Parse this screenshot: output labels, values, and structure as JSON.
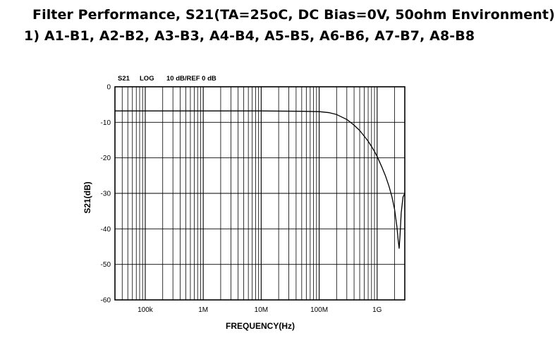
{
  "page": {
    "title_line1": "Filter Performance, S21(TA=25oC, DC Bias=0V, 50ohm Environment)",
    "title_line2": "1) A1-B1, A2-B2, A3-B3, A4-B4, A5-B5, A6-B6, A7-B7, A8-B8"
  },
  "chart_data": {
    "type": "line",
    "header": {
      "param": "S21",
      "scale": "LOG",
      "ref": "10 dB/REF 0 dB"
    },
    "xlabel": "FREQUENCY(Hz)",
    "ylabel": "S21(dB)",
    "x_scale": "log",
    "xlim": [
      30000,
      3000000000
    ],
    "ylim": [
      -60,
      0
    ],
    "x_ticks": [
      {
        "value": 100000,
        "label": "100k"
      },
      {
        "value": 1000000,
        "label": "1M"
      },
      {
        "value": 10000000,
        "label": "10M"
      },
      {
        "value": 100000000,
        "label": "100M"
      },
      {
        "value": 1000000000,
        "label": "1G"
      }
    ],
    "y_ticks": [
      {
        "value": 0,
        "label": "0"
      },
      {
        "value": -10,
        "label": "-10"
      },
      {
        "value": -20,
        "label": "-20"
      },
      {
        "value": -30,
        "label": "-30"
      },
      {
        "value": -40,
        "label": "-40"
      },
      {
        "value": -50,
        "label": "-50"
      },
      {
        "value": -60,
        "label": "-60"
      }
    ],
    "grid": true,
    "line_color": "#000000",
    "series": [
      {
        "x": [
          30000,
          100000,
          1000000,
          10000000,
          50000000,
          100000000,
          150000000,
          200000000,
          300000000,
          400000000,
          500000000,
          600000000,
          700000000,
          800000000,
          900000000,
          1000000000,
          1200000000,
          1400000000,
          1600000000,
          1800000000,
          2000000000,
          2200000000,
          2300000000,
          2400000000,
          2500000000,
          2600000000,
          2800000000,
          3000000000
        ],
        "y": [
          -6.8,
          -6.8,
          -6.8,
          -6.8,
          -6.9,
          -7.0,
          -7.3,
          -7.8,
          -9.2,
          -10.8,
          -12.3,
          -13.9,
          -15.3,
          -16.8,
          -18.2,
          -19.6,
          -22.5,
          -25.2,
          -28.0,
          -31.0,
          -34.5,
          -39.5,
          -43.0,
          -45.5,
          -41.0,
          -35.5,
          -31.0,
          -30.0
        ]
      }
    ]
  }
}
